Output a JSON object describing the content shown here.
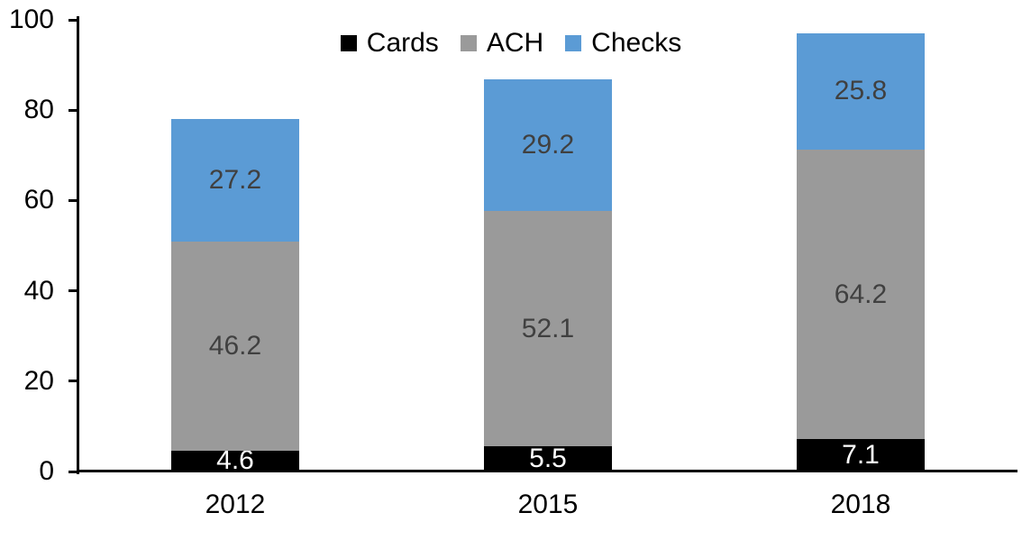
{
  "chart_data": {
    "type": "bar",
    "stacked": true,
    "title": "",
    "xlabel": "",
    "ylabel": "",
    "categories": [
      "2012",
      "2015",
      "2018"
    ],
    "series": [
      {
        "name": "Cards",
        "color": "#000000",
        "label_color": "#ffffff",
        "values": [
          4.6,
          5.5,
          7.1
        ]
      },
      {
        "name": "ACH",
        "color": "#9a9a9a",
        "label_color": "#404040",
        "values": [
          46.2,
          52.1,
          64.2
        ]
      },
      {
        "name": "Checks",
        "color": "#5b9bd5",
        "label_color": "#404040",
        "values": [
          27.2,
          29.2,
          25.8
        ]
      }
    ],
    "y_axis": {
      "ticks": [
        0,
        20,
        40,
        60,
        80,
        100
      ],
      "range": [
        0,
        100
      ],
      "tick_labels": [
        "0",
        "20",
        "40",
        "60",
        "80",
        "100"
      ]
    },
    "legend": {
      "position": "top",
      "entries": [
        "Cards",
        "ACH",
        "Checks"
      ]
    },
    "grid": false,
    "axis_color": "#000000",
    "background_color": "#ffffff",
    "data_labels_shown": true
  }
}
